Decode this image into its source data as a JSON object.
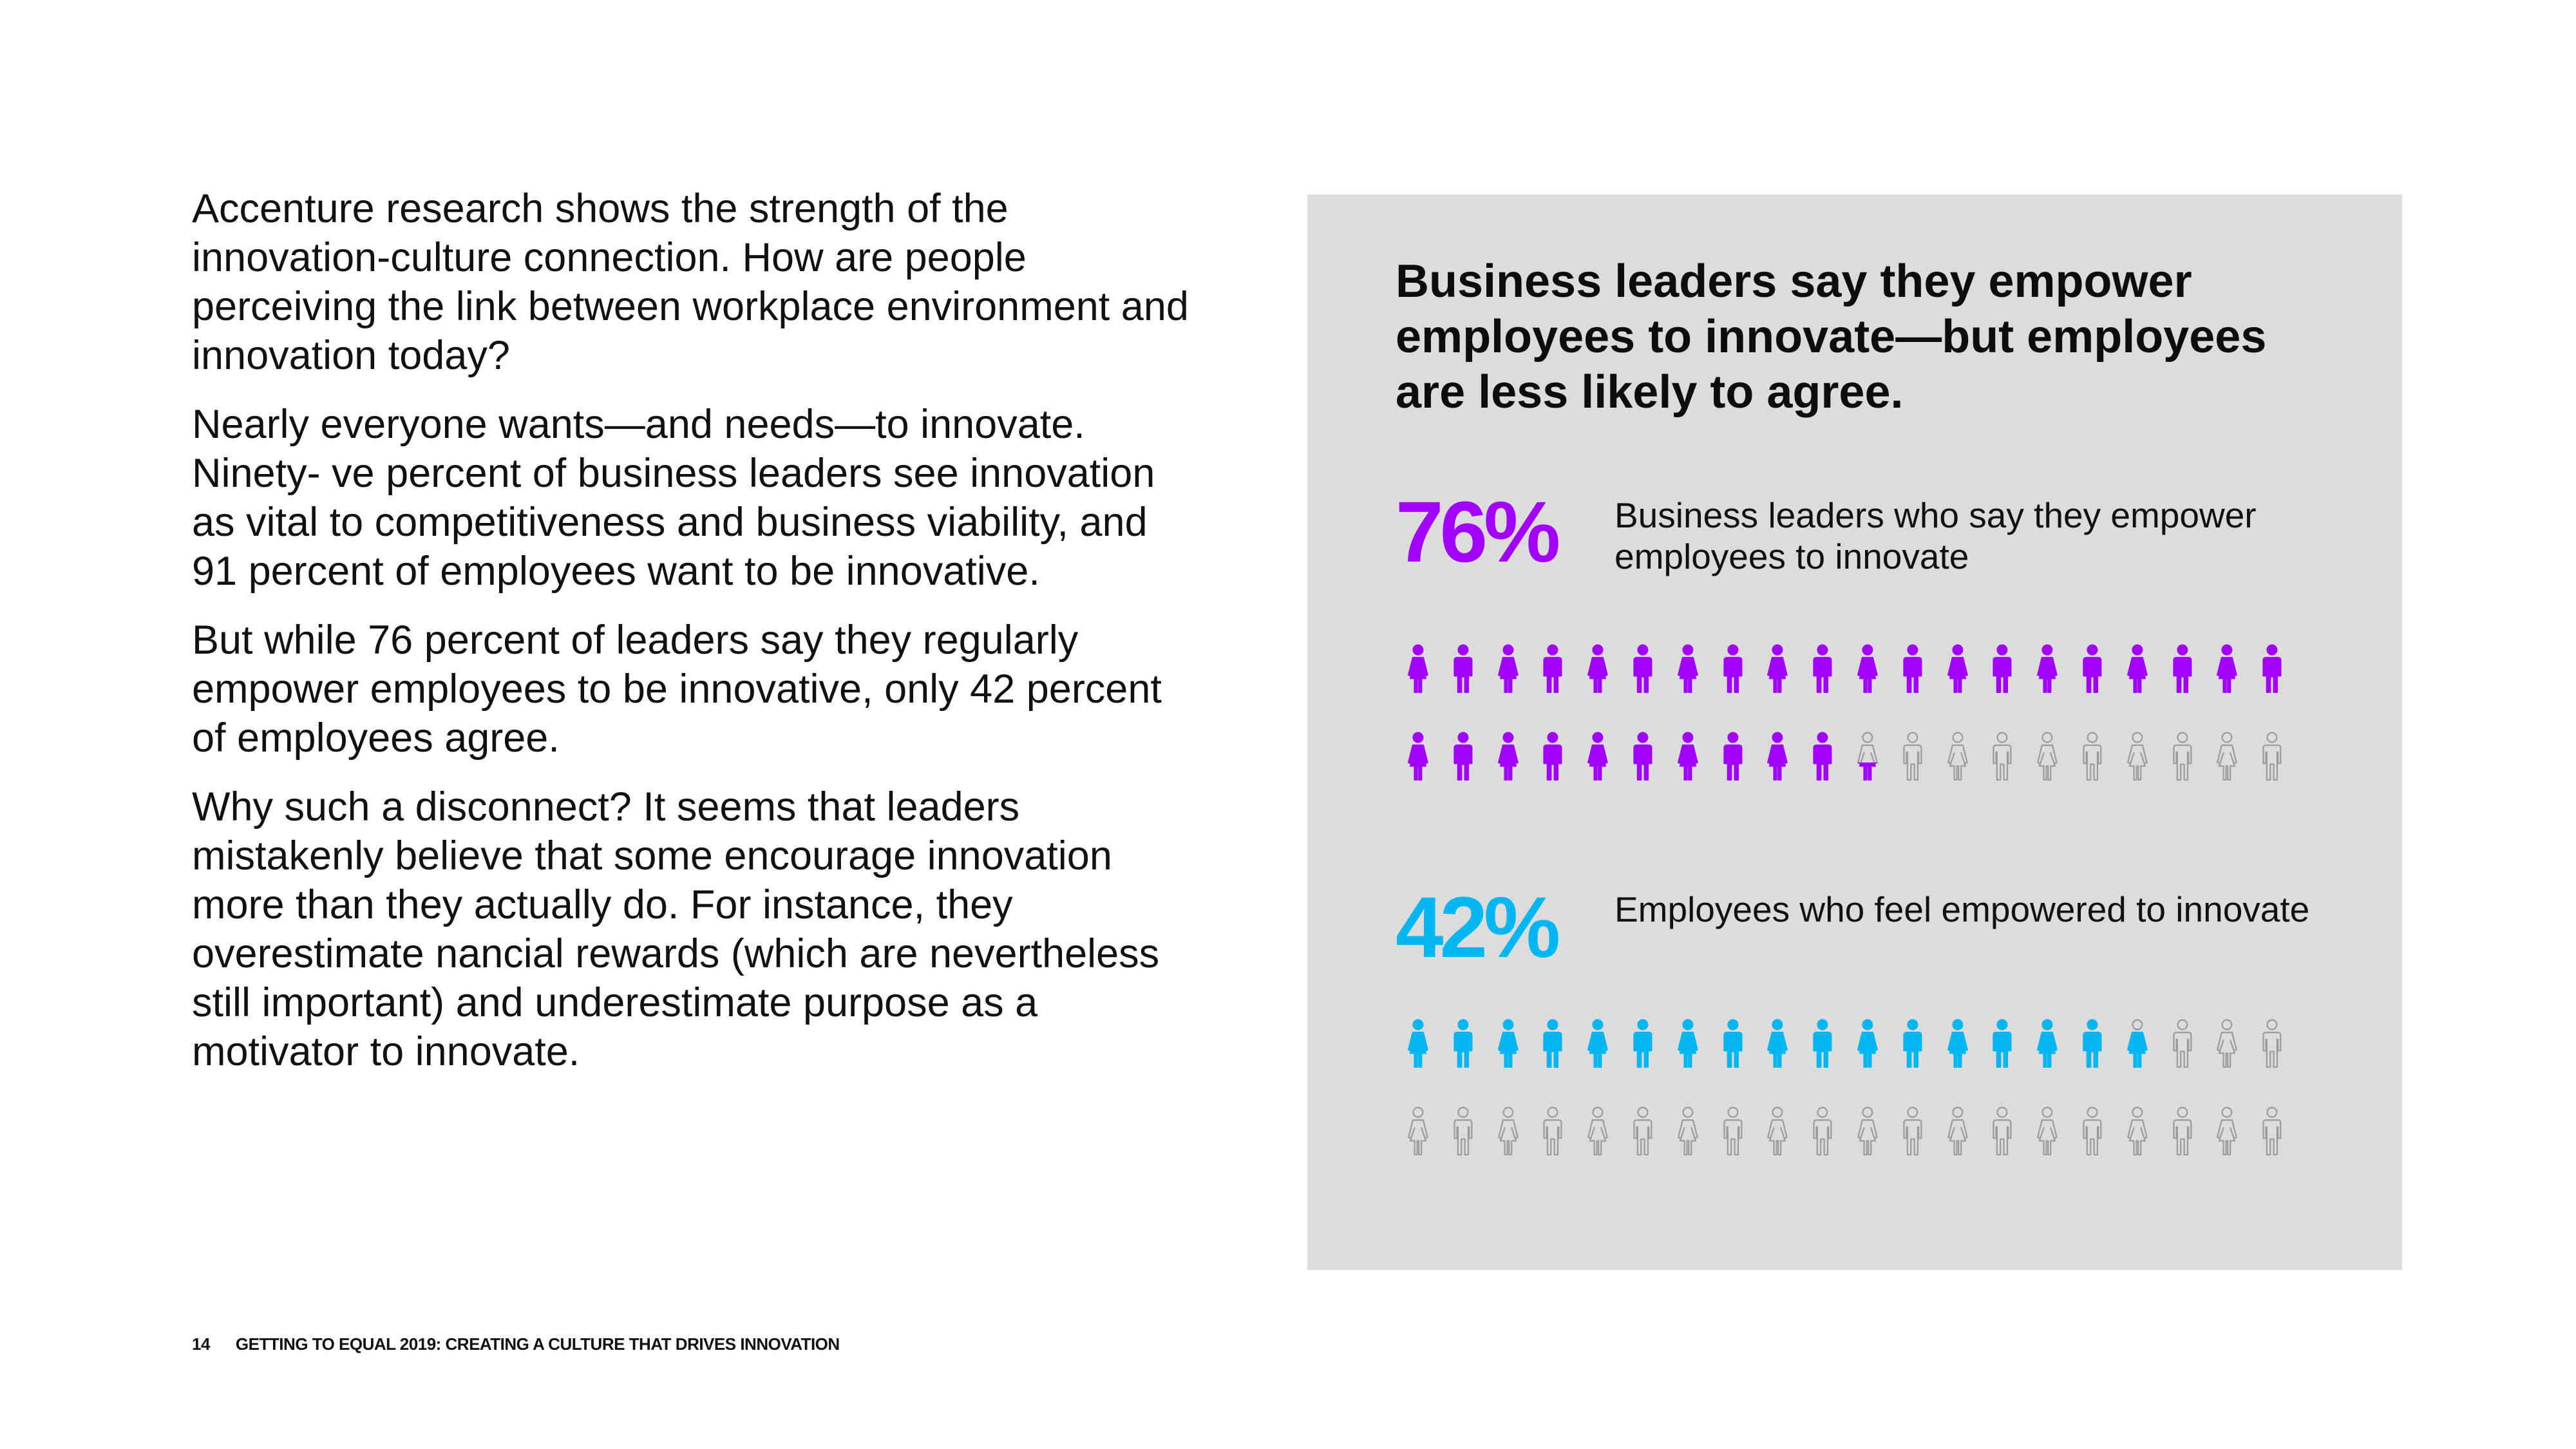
{
  "body": {
    "paragraphs": [
      "Accenture research shows the strength of the innovation-culture connection. How are people perceiving the link between workplace environment and innovation today?",
      "Nearly everyone wants—and needs—to innovate. Ninety- ve percent of business leaders see innovation as vital to competitiveness and business viability, and 91 percent of employees want to be innovative.",
      "But while 76 percent of leaders say they regularly empower employees to be innovative, only 42 percent of employees agree.",
      "Why such a disconnect? It seems that leaders mistakenly believe that some encourage innovation more than they actually do. For instance, they overestimate nancial rewards (which are nevertheless still important) and underestimate purpose as a motivator to innovate."
    ]
  },
  "panel": {
    "title": "Business leaders say they empower employees to innovate—but employees are less likely to agree.",
    "colors": {
      "leaders": "#a100ff",
      "employees": "#00b7f1",
      "empty_stroke": "#9a9a9a",
      "background": "#dcdcdc"
    },
    "stats": [
      {
        "value": "76%",
        "label": "Business leaders who say they empower employees to innovate",
        "percent": 76,
        "icon": "person-icon"
      },
      {
        "value": "42%",
        "label": "Employees who feel empowered to innovate",
        "percent": 42,
        "icon": "person-icon"
      }
    ]
  },
  "footer": {
    "page_number": "14",
    "title": "GETTING TO EQUAL 2019: CREATING A CULTURE THAT DRIVES INNOVATION"
  }
}
